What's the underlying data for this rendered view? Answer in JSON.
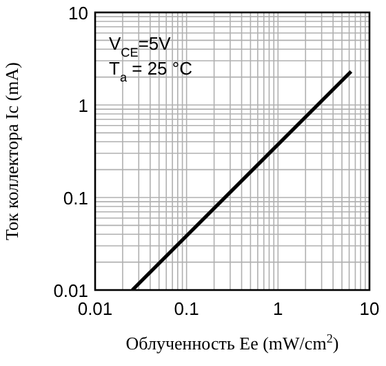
{
  "chart_data": {
    "type": "line",
    "xlabel": "Облученность Ee (mW/cm$^{2}$)",
    "ylabel": "Ток коллектора Ic (mA)",
    "annotations": [
      "V$_{CE}$=5V",
      "T$_{a}$ = 25 °C"
    ],
    "log": "xy",
    "grid": true,
    "xlim": [
      0.01,
      10
    ],
    "ylim": [
      0.01,
      10
    ],
    "xticks": [
      0.01,
      {
        "value": 0.02,
        "label": null
      },
      {
        "value": 0.03,
        "label": null
      },
      {
        "value": 0.04,
        "label": null
      },
      {
        "value": 0.05,
        "label": null
      },
      {
        "value": 0.06,
        "label": null
      },
      {
        "value": 0.07,
        "label": null
      },
      {
        "value": 0.08,
        "label": null
      },
      {
        "value": 0.09,
        "label": null
      },
      0.1,
      {
        "value": 0.2,
        "label": null
      },
      {
        "value": 0.3,
        "label": null
      },
      {
        "value": 0.4,
        "label": null
      },
      {
        "value": 0.5,
        "label": null
      },
      {
        "value": 0.6,
        "label": null
      },
      {
        "value": 0.7,
        "label": null
      },
      {
        "value": 0.8,
        "label": null
      },
      {
        "value": 0.9,
        "label": null
      },
      1,
      {
        "value": 2,
        "label": null
      },
      {
        "value": 3,
        "label": null
      },
      {
        "value": 4,
        "label": null
      },
      {
        "value": 5,
        "label": null
      },
      {
        "value": 6,
        "label": null
      },
      {
        "value": 7,
        "label": null
      },
      {
        "value": 8,
        "label": null
      },
      {
        "value": 9,
        "label": null
      },
      10
    ],
    "yticks": [
      0.01,
      {
        "value": 0.02,
        "label": null
      },
      {
        "value": 0.03,
        "label": null
      },
      {
        "value": 0.04,
        "label": null
      },
      {
        "value": 0.05,
        "label": null
      },
      {
        "value": 0.06,
        "label": null
      },
      {
        "value": 0.07,
        "label": null
      },
      {
        "value": 0.08,
        "label": null
      },
      {
        "value": 0.09,
        "label": null
      },
      0.1,
      {
        "value": 0.2,
        "label": null
      },
      {
        "value": 0.3,
        "label": null
      },
      {
        "value": 0.4,
        "label": null
      },
      {
        "value": 0.5,
        "label": null
      },
      {
        "value": 0.6,
        "label": null
      },
      {
        "value": 0.7,
        "label": null
      },
      {
        "value": 0.8,
        "label": null
      },
      {
        "value": 0.9,
        "label": null
      },
      1,
      {
        "value": 2,
        "label": null
      },
      {
        "value": 3,
        "label": null
      },
      {
        "value": 4,
        "label": null
      },
      {
        "value": 5,
        "label": null
      },
      {
        "value": 6,
        "label": null
      },
      {
        "value": 7,
        "label": null
      },
      {
        "value": 8,
        "label": null
      },
      {
        "value": 9,
        "label": null
      },
      10
    ],
    "series": [
      {
        "color": "#000000",
        "x": [
          0.0255,
          6.3
        ],
        "values": [
          0.01,
          2.3
        ]
      }
    ]
  }
}
